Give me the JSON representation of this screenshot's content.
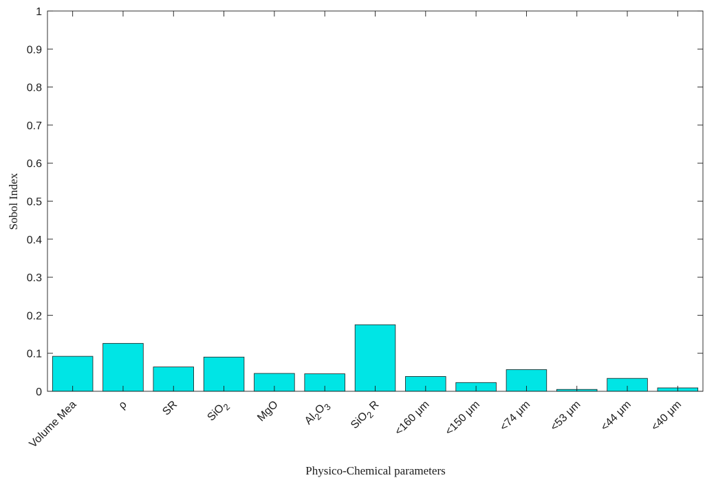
{
  "chart_data": {
    "type": "bar",
    "title": "",
    "xlabel": "Physico-Chemical parameters",
    "ylabel": "Sobol Index",
    "ylim": [
      0,
      1
    ],
    "yticks": [
      "0",
      "0.1",
      "0.2",
      "0.3",
      "0.4",
      "0.5",
      "0.6",
      "0.7",
      "0.8",
      "0.9",
      "1"
    ],
    "grid": false,
    "categories": [
      {
        "text": "Volume Mea"
      },
      {
        "text": "ρ"
      },
      {
        "text": "SR"
      },
      {
        "text": "SiO",
        "sub": "2"
      },
      {
        "text": "MgO"
      },
      {
        "text": "Al",
        "sub": "2",
        "text2": "O",
        "sub2": "3"
      },
      {
        "text": "SiO",
        "sub": "2",
        "text2": " R"
      },
      {
        "text": "<160 μm"
      },
      {
        "text": "<150 μm"
      },
      {
        "text": "<74 μm"
      },
      {
        "text": "<53 μm"
      },
      {
        "text": "<44 μm"
      },
      {
        "text": "<40 μm"
      }
    ],
    "values": [
      0.092,
      0.126,
      0.064,
      0.09,
      0.047,
      0.046,
      0.175,
      0.039,
      0.023,
      0.057,
      0.005,
      0.034,
      0.009
    ],
    "colors": {
      "bar": "#00e5e5",
      "bar_edge": "#1a1a1a",
      "axis": "#1a1a1a"
    }
  }
}
